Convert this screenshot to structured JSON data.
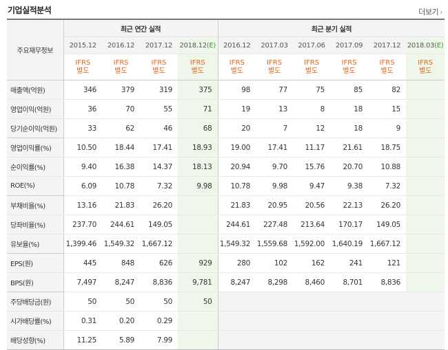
{
  "header": {
    "title": "기업실적분석",
    "more_label": "더보기",
    "more_chevron": "›"
  },
  "table": {
    "corner_label": "주요재무정보",
    "groups": {
      "annual": "최근 연간 실적",
      "quarterly": "최근 분기 실적"
    },
    "annual_periods": [
      "2015.12",
      "2016.12",
      "2017.12",
      "2018.12"
    ],
    "annual_estimate_mark": "(E)",
    "quarter_periods": [
      "2016.12",
      "2017.03",
      "2017.06",
      "2017.09",
      "2017.12",
      "2018.03"
    ],
    "quarter_estimate_mark": "(E)",
    "ifrs_label": "IFRS",
    "ifrs_sub": "별도",
    "rows": [
      {
        "label": "매출액(억원)",
        "annual": [
          "346",
          "379",
          "319",
          "375"
        ],
        "quarter": [
          "98",
          "77",
          "75",
          "85",
          "82",
          ""
        ]
      },
      {
        "label": "영업이익(억원)",
        "annual": [
          "36",
          "70",
          "55",
          "71"
        ],
        "quarter": [
          "19",
          "13",
          "8",
          "18",
          "15",
          ""
        ]
      },
      {
        "label": "당기순이익(억원)",
        "annual": [
          "33",
          "62",
          "46",
          "68"
        ],
        "quarter": [
          "20",
          "7",
          "12",
          "18",
          "9",
          ""
        ]
      },
      {
        "label": "영업이익률(%)",
        "annual": [
          "10.50",
          "18.44",
          "17.41",
          "18.93"
        ],
        "quarter": [
          "19.00",
          "17.41",
          "11.17",
          "21.61",
          "18.75",
          ""
        ]
      },
      {
        "label": "순이익률(%)",
        "annual": [
          "9.40",
          "16.38",
          "14.37",
          "18.13"
        ],
        "quarter": [
          "20.94",
          "9.70",
          "15.76",
          "20.70",
          "10.88",
          ""
        ]
      },
      {
        "label": "ROE(%)",
        "annual": [
          "6.09",
          "10.78",
          "7.32",
          "9.98"
        ],
        "quarter": [
          "10.78",
          "9.98",
          "9.47",
          "9.38",
          "7.32",
          ""
        ]
      },
      {
        "label": "부채비율(%)",
        "annual": [
          "13.16",
          "21.83",
          "26.20",
          ""
        ],
        "quarter": [
          "21.83",
          "20.95",
          "20.56",
          "22.13",
          "26.20",
          ""
        ]
      },
      {
        "label": "당좌비율(%)",
        "annual": [
          "237.70",
          "244.61",
          "149.05",
          ""
        ],
        "quarter": [
          "244.61",
          "227.48",
          "213.64",
          "170.17",
          "149.05",
          ""
        ]
      },
      {
        "label": "유보율(%)",
        "annual": [
          "1,399.46",
          "1,549.32",
          "1,667.12",
          ""
        ],
        "quarter": [
          "1,549.32",
          "1,559.68",
          "1,592.00",
          "1,640.19",
          "1,667.12",
          ""
        ]
      },
      {
        "label": "EPS(원)",
        "annual": [
          "445",
          "848",
          "626",
          "929"
        ],
        "quarter": [
          "280",
          "102",
          "162",
          "241",
          "121",
          ""
        ]
      },
      {
        "label": "BPS(원)",
        "annual": [
          "7,497",
          "8,247",
          "8,836",
          "9,781"
        ],
        "quarter": [
          "8,247",
          "8,298",
          "8,460",
          "8,701",
          "8,836",
          ""
        ]
      },
      {
        "label": "주당배당금(원)",
        "annual": [
          "50",
          "50",
          "50",
          "50"
        ],
        "quarter": [
          "",
          "",
          "",
          "",
          "",
          ""
        ]
      },
      {
        "label": "시가배당률(%)",
        "annual": [
          "0.31",
          "0.20",
          "0.29",
          ""
        ],
        "quarter": [
          "",
          "",
          "",
          "",
          "",
          ""
        ]
      },
      {
        "label": "배당성향(%)",
        "annual": [
          "11.25",
          "5.89",
          "7.99",
          ""
        ],
        "quarter": [
          "",
          "",
          "",
          "",
          "",
          ""
        ]
      }
    ]
  }
}
